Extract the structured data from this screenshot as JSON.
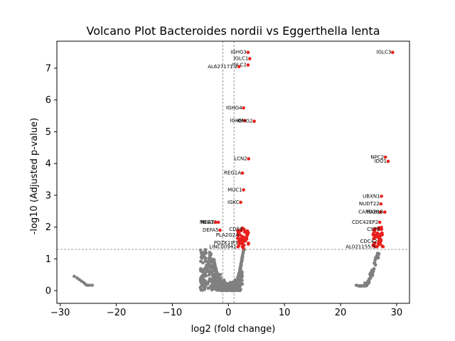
{
  "chart_data": {
    "type": "scatter",
    "title": "Volcano Plot Bacteroides nordii vs Eggerthella lenta",
    "xlabel": "log2 (fold change)",
    "ylabel": "-log10 (Adjusted p-value)",
    "xlim": [
      -30.6,
      32.3
    ],
    "ylim": [
      -0.4,
      7.85
    ],
    "xticks": [
      -30,
      -20,
      -10,
      0,
      10,
      20,
      30
    ],
    "yticks": [
      0,
      1,
      2,
      3,
      4,
      5,
      6,
      7
    ],
    "grid": false,
    "thresholds": {
      "log2fc": [
        -1,
        1
      ],
      "neg_log10_padj": 1.3
    },
    "colors": {
      "significant": "#e8201c",
      "not_significant": "#808080",
      "threshold_line": "#808080"
    },
    "significant_points": [
      {
        "label": "IGLC3",
        "x": 29.3,
        "y": 7.5
      },
      {
        "label": "IGHG3",
        "x": 3.5,
        "y": 7.5
      },
      {
        "label": "IGLC1",
        "x": 3.8,
        "y": 7.3
      },
      {
        "label": "IGLC2",
        "x": 3.5,
        "y": 7.1
      },
      {
        "label": "AL627171.2",
        "x": 1.9,
        "y": 7.05
      },
      {
        "label": "IGHG4",
        "x": 2.7,
        "y": 5.75
      },
      {
        "label": "IGHM",
        "x": 2.9,
        "y": 5.35
      },
      {
        "label": "IGHG2",
        "x": 4.6,
        "y": 5.33
      },
      {
        "label": "LCN2",
        "x": 3.6,
        "y": 4.15
      },
      {
        "label": "NPC2",
        "x": 28.0,
        "y": 4.2
      },
      {
        "label": "IDO1",
        "x": 28.5,
        "y": 4.07
      },
      {
        "label": "REG1A",
        "x": 2.5,
        "y": 3.7
      },
      {
        "label": "MUC1",
        "x": 2.7,
        "y": 3.17
      },
      {
        "label": "UBXN1",
        "x": 27.3,
        "y": 2.97
      },
      {
        "label": "IGKC",
        "x": 2.2,
        "y": 2.78
      },
      {
        "label": "NUDT22",
        "x": 27.2,
        "y": 2.73
      },
      {
        "label": "CARD16",
        "x": 27.1,
        "y": 2.47
      },
      {
        "label": "RAB1B",
        "x": 27.9,
        "y": 2.47
      },
      {
        "label": "NEAT1",
        "x": -1.8,
        "y": 2.15
      },
      {
        "label": "MEG3",
        "x": -2.3,
        "y": 2.15
      },
      {
        "label": "CDC42EP2",
        "x": 27.0,
        "y": 2.15
      },
      {
        "label": "CD59",
        "x": 2.8,
        "y": 1.93
      },
      {
        "label": "DEFA5",
        "x": -1.5,
        "y": 1.9
      },
      {
        "label": "PLA2G2A",
        "x": 2.1,
        "y": 1.75
      },
      {
        "label": "CSTB",
        "x": 27.3,
        "y": 1.93
      },
      {
        "label": "PDZK1IP1",
        "x": 2.0,
        "y": 1.5
      },
      {
        "label": "CDC42",
        "x": 26.8,
        "y": 1.55
      },
      {
        "label": "LINC00941",
        "x": 1.7,
        "y": 1.38
      },
      {
        "label": "AL021155.5",
        "x": 26.5,
        "y": 1.38
      }
    ]
  }
}
